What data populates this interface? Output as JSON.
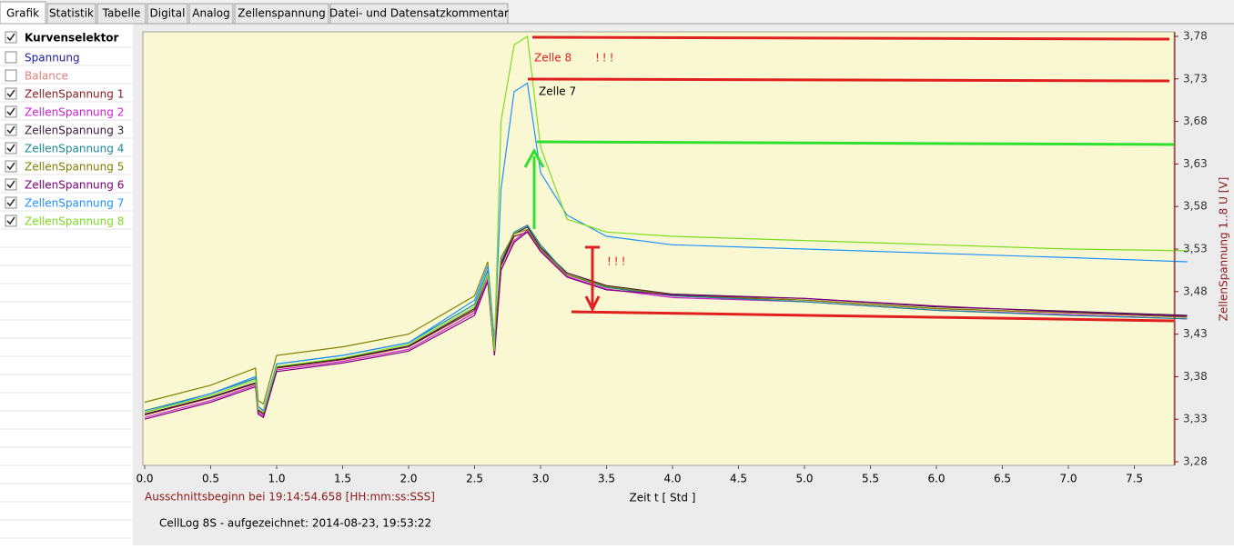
{
  "tabs": [
    "Grafik",
    "Statistik",
    "Tabelle",
    "Digital",
    "Analog",
    "Zellenspannung",
    "Datei- und Datensatzkommentar"
  ],
  "selector": {
    "title": "Kurvenselektor",
    "title_checked": true,
    "items": [
      {
        "label": "Spannung",
        "checked": false,
        "color": "#1a1aa0"
      },
      {
        "label": "Balance",
        "checked": false,
        "color": "#e08080"
      },
      {
        "label": "ZellenSpannung 1",
        "checked": true,
        "color": "#8b1a1a"
      },
      {
        "label": "ZellenSpannung 2",
        "checked": true,
        "color": "#d020d0"
      },
      {
        "label": "ZellenSpannung 3",
        "checked": true,
        "color": "#3a1a3a"
      },
      {
        "label": "ZellenSpannung 4",
        "checked": true,
        "color": "#1a8a9a"
      },
      {
        "label": "ZellenSpannung 5",
        "checked": true,
        "color": "#808000"
      },
      {
        "label": "ZellenSpannung 6",
        "checked": true,
        "color": "#800080"
      },
      {
        "label": "ZellenSpannung 7",
        "checked": true,
        "color": "#1e90ff"
      },
      {
        "label": "ZellenSpannung 8",
        "checked": true,
        "color": "#7cdc20"
      }
    ]
  },
  "chart_data": {
    "type": "line",
    "x_label": "Zeit  t   [ Std ]",
    "y_label": "ZellenSpannung 1..8  U  [V]",
    "x": [
      0,
      0.5,
      0.84,
      0.86,
      0.9,
      1.0,
      1.5,
      2.0,
      2.5,
      2.6,
      2.65,
      2.7,
      2.8,
      2.9,
      3.0,
      3.2,
      3.5,
      4.0,
      5.0,
      6.0,
      7.0,
      7.9
    ],
    "series": [
      {
        "name": "ZellenSpannung 1",
        "color": "#8b1a1a",
        "values": [
          3.335,
          3.355,
          3.372,
          3.34,
          3.336,
          3.39,
          3.4,
          3.415,
          3.458,
          3.5,
          3.41,
          3.51,
          3.545,
          3.55,
          3.53,
          3.5,
          3.485,
          3.475,
          3.47,
          3.46,
          3.455,
          3.45
        ]
      },
      {
        "name": "ZellenSpannung 2",
        "color": "#d020d0",
        "values": [
          3.332,
          3.352,
          3.37,
          3.338,
          3.334,
          3.388,
          3.398,
          3.412,
          3.455,
          3.495,
          3.405,
          3.505,
          3.54,
          3.552,
          3.528,
          3.498,
          3.483,
          3.473,
          3.468,
          3.458,
          3.453,
          3.448
        ]
      },
      {
        "name": "ZellenSpannung 3",
        "color": "#3a1a3a",
        "values": [
          3.336,
          3.356,
          3.373,
          3.341,
          3.337,
          3.391,
          3.401,
          3.416,
          3.46,
          3.5,
          3.41,
          3.512,
          3.548,
          3.556,
          3.532,
          3.502,
          3.487,
          3.477,
          3.472,
          3.462,
          3.457,
          3.452
        ]
      },
      {
        "name": "ZellenSpannung 4",
        "color": "#1a8a9a",
        "values": [
          3.34,
          3.36,
          3.378,
          3.345,
          3.34,
          3.395,
          3.405,
          3.42,
          3.465,
          3.505,
          3.415,
          3.515,
          3.55,
          3.558,
          3.535,
          3.5,
          3.485,
          3.475,
          3.468,
          3.458,
          3.452,
          3.448
        ]
      },
      {
        "name": "ZellenSpannung 5",
        "color": "#808000",
        "values": [
          3.35,
          3.37,
          3.39,
          3.352,
          3.348,
          3.405,
          3.415,
          3.43,
          3.475,
          3.515,
          3.42,
          3.52,
          3.548,
          3.553,
          3.53,
          3.5,
          3.486,
          3.476,
          3.47,
          3.46,
          3.455,
          3.45
        ]
      },
      {
        "name": "ZellenSpannung 6",
        "color": "#800080",
        "values": [
          3.33,
          3.35,
          3.368,
          3.336,
          3.332,
          3.386,
          3.396,
          3.41,
          3.452,
          3.492,
          3.405,
          3.505,
          3.538,
          3.55,
          3.527,
          3.497,
          3.482,
          3.476,
          3.472,
          3.463,
          3.456,
          3.451
        ]
      },
      {
        "name": "ZellenSpannung 7",
        "color": "#1e90ff",
        "values": [
          3.338,
          3.36,
          3.38,
          3.345,
          3.34,
          3.395,
          3.405,
          3.42,
          3.47,
          3.51,
          3.42,
          3.6,
          3.715,
          3.725,
          3.62,
          3.57,
          3.545,
          3.535,
          3.53,
          3.525,
          3.52,
          3.515
        ]
      },
      {
        "name": "ZellenSpannung 8",
        "color": "#7cdc20",
        "values": [
          3.338,
          3.358,
          3.376,
          3.342,
          3.338,
          3.392,
          3.402,
          3.418,
          3.462,
          3.5,
          3.41,
          3.68,
          3.77,
          3.78,
          3.65,
          3.565,
          3.55,
          3.545,
          3.54,
          3.535,
          3.53,
          3.528
        ]
      }
    ],
    "xlim": [
      0,
      7.8
    ],
    "ylim": [
      3.28,
      3.78
    ],
    "xticks": [
      {
        "value": 0,
        "label": "0.0"
      },
      0.5,
      {
        "value": 1,
        "label": "1.0"
      },
      1.5,
      {
        "value": 2,
        "label": "2.0"
      },
      2.5,
      {
        "value": 3,
        "label": "3.0"
      },
      3.5,
      {
        "value": 4,
        "label": "4.0"
      },
      4.5,
      {
        "value": 5,
        "label": "5.0"
      },
      5.5,
      {
        "value": 6,
        "label": "6.0"
      },
      6.5,
      {
        "value": 7,
        "label": "7.0"
      },
      7.5
    ],
    "yticks": [
      {
        "value": 3.28,
        "label": "3,28"
      },
      {
        "value": 3.33,
        "label": "3,33"
      },
      {
        "value": 3.38,
        "label": "3,38"
      },
      {
        "value": 3.43,
        "label": "3,43"
      },
      {
        "value": 3.48,
        "label": "3,48"
      },
      {
        "value": 3.53,
        "label": "3,53"
      },
      {
        "value": 3.58,
        "label": "3,58"
      },
      {
        "value": 3.63,
        "label": "3,63"
      },
      {
        "value": 3.68,
        "label": "3,68"
      },
      {
        "value": 3.73,
        "label": "3,73"
      },
      {
        "value": 3.78,
        "label": "3,78"
      }
    ],
    "axis_color": "#8b1a1a",
    "annotations": [
      {
        "text": "Zelle 8",
        "color": "#e02020"
      },
      {
        "text": "!!!",
        "color": "#e02020"
      },
      {
        "text": "Zelle 7",
        "color": "#000000"
      },
      {
        "text": "!!!",
        "color": "#e02020"
      }
    ]
  },
  "footer": {
    "start_info": "Ausschnittsbeginn bei 19:14:54.658 [HH:mm:ss:SSS]",
    "record": "CellLog 8S - aufgezeichnet: 2014-08-23, 19:53:22"
  }
}
